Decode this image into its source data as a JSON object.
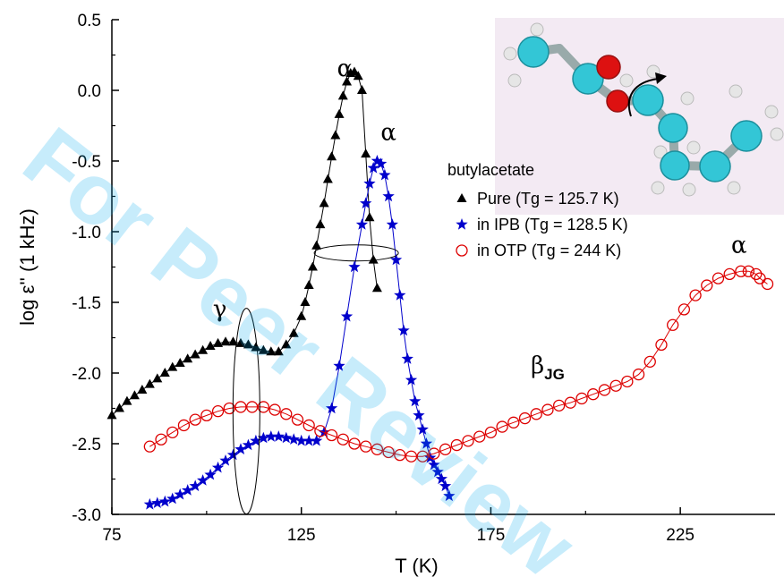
{
  "chart_data": {
    "type": "scatter",
    "xlabel": "T (K)",
    "ylabel": "log ε'' (1 kHz)",
    "xlim": [
      75,
      250
    ],
    "ylim": [
      -3.0,
      0.5
    ],
    "xticks": [
      75,
      125,
      175,
      225
    ],
    "xtick_labels": [
      "75",
      "125",
      "175",
      "225"
    ],
    "yticks": [
      0.5,
      0.0,
      -0.5,
      -1.0,
      -1.5,
      -2.0,
      -2.5,
      -3.0
    ],
    "ytick_labels": [
      "0.5",
      "0.0",
      "-0.5",
      "-1.0",
      "-1.5",
      "-2.0",
      "-2.5",
      "-3.0"
    ],
    "legend_title": "butylacetate",
    "legend_placement": "upper-right",
    "watermark": "For Peer Review",
    "series": [
      {
        "name": "Pure (Tg = 125.7 K)",
        "marker": "triangle",
        "color": "#000000",
        "x": [
          75,
          77,
          79,
          81,
          83,
          85,
          87,
          89,
          91,
          93,
          95,
          97,
          99,
          101,
          103,
          105,
          107,
          109,
          111,
          113,
          115,
          117,
          119,
          121,
          123,
          125,
          126,
          127,
          128,
          129,
          130,
          131,
          132,
          133,
          134,
          135,
          136,
          137,
          138,
          139,
          140,
          141,
          142,
          143,
          144,
          145
        ],
        "y": [
          -2.3,
          -2.25,
          -2.2,
          -2.16,
          -2.12,
          -2.08,
          -2.04,
          -2.0,
          -1.96,
          -1.93,
          -1.9,
          -1.87,
          -1.84,
          -1.81,
          -1.79,
          -1.78,
          -1.78,
          -1.79,
          -1.8,
          -1.82,
          -1.84,
          -1.85,
          -1.85,
          -1.8,
          -1.72,
          -1.6,
          -1.5,
          -1.38,
          -1.25,
          -1.1,
          -0.95,
          -0.8,
          -0.63,
          -0.47,
          -0.32,
          -0.17,
          -0.04,
          0.06,
          0.12,
          0.13,
          0.1,
          0.0,
          -0.45,
          -0.9,
          -1.2,
          -1.4
        ]
      },
      {
        "name": "in IPB (Tg = 128.5 K)",
        "marker": "star",
        "color": "#0000cc",
        "x": [
          85,
          87,
          89,
          91,
          93,
          95,
          97,
          99,
          101,
          103,
          105,
          107,
          109,
          111,
          113,
          115,
          117,
          119,
          121,
          123,
          125,
          127,
          129,
          131,
          133,
          135,
          137,
          139,
          141,
          142,
          143,
          144,
          145,
          146,
          147,
          148,
          149,
          150,
          151,
          152,
          153,
          154,
          155,
          156,
          157,
          158,
          159,
          160,
          161,
          162,
          163,
          164
        ],
        "y": [
          -2.93,
          -2.92,
          -2.91,
          -2.89,
          -2.86,
          -2.83,
          -2.8,
          -2.76,
          -2.72,
          -2.67,
          -2.62,
          -2.58,
          -2.54,
          -2.51,
          -2.48,
          -2.46,
          -2.45,
          -2.45,
          -2.46,
          -2.47,
          -2.48,
          -2.48,
          -2.48,
          -2.42,
          -2.25,
          -1.95,
          -1.6,
          -1.25,
          -0.95,
          -0.8,
          -0.66,
          -0.55,
          -0.5,
          -0.52,
          -0.6,
          -0.75,
          -0.95,
          -1.2,
          -1.45,
          -1.7,
          -1.9,
          -2.05,
          -2.2,
          -2.3,
          -2.4,
          -2.5,
          -2.6,
          -2.65,
          -2.7,
          -2.75,
          -2.8,
          -2.87
        ]
      },
      {
        "name": "in OTP (Tg = 244 K)",
        "marker": "circle",
        "color": "#dd0000",
        "x": [
          85,
          88,
          91,
          94,
          97,
          100,
          103,
          106,
          109,
          112,
          115,
          118,
          121,
          124,
          127,
          130,
          133,
          136,
          139,
          142,
          145,
          148,
          151,
          154,
          157,
          160,
          163,
          166,
          169,
          172,
          175,
          178,
          181,
          184,
          187,
          190,
          193,
          196,
          199,
          202,
          205,
          208,
          211,
          214,
          217,
          220,
          223,
          226,
          229,
          232,
          235,
          238,
          241,
          243,
          245,
          246,
          248
        ],
        "y": [
          -2.52,
          -2.47,
          -2.42,
          -2.37,
          -2.33,
          -2.3,
          -2.27,
          -2.25,
          -2.24,
          -2.24,
          -2.24,
          -2.26,
          -2.29,
          -2.33,
          -2.37,
          -2.41,
          -2.44,
          -2.47,
          -2.5,
          -2.52,
          -2.54,
          -2.56,
          -2.58,
          -2.59,
          -2.59,
          -2.57,
          -2.54,
          -2.51,
          -2.48,
          -2.45,
          -2.42,
          -2.38,
          -2.35,
          -2.32,
          -2.29,
          -2.26,
          -2.23,
          -2.21,
          -2.18,
          -2.15,
          -2.12,
          -2.09,
          -2.06,
          -2.01,
          -1.92,
          -1.8,
          -1.66,
          -1.55,
          -1.45,
          -1.38,
          -1.33,
          -1.3,
          -1.28,
          -1.28,
          -1.3,
          -1.33,
          -1.37
        ]
      }
    ],
    "annotations": [
      {
        "text": "α",
        "x": 136.5,
        "y": 0.1
      },
      {
        "text": "α",
        "x": 148,
        "y": -0.35
      },
      {
        "text": "γ",
        "x": 103.5,
        "y": -1.6
      },
      {
        "text": "β",
        "sub": "JG",
        "x": 190,
        "y": -2.0
      },
      {
        "text": "α",
        "x": 240.5,
        "y": -1.15
      }
    ]
  }
}
